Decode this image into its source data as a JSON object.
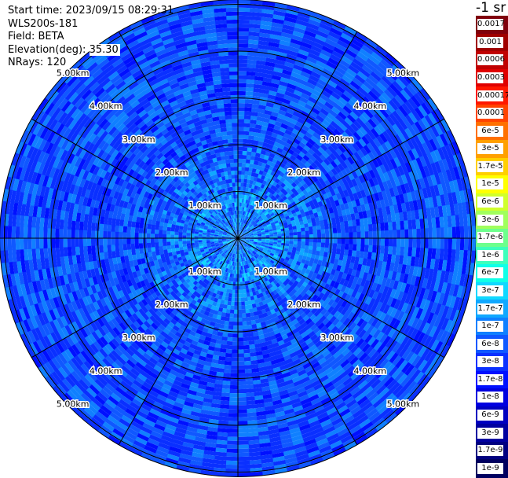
{
  "header": {
    "start_time": "Start time: 2023/09/15 08:29:31",
    "instrument": "WLS200s-181",
    "field": "Field: BETA",
    "elevation_label": "Elevation(deg):",
    "elevation_value": "35.30",
    "nrays": "NRays: 120"
  },
  "colorbar": {
    "title": "-1 sr",
    "labels": [
      "0.0017",
      "0.001",
      "0.0006",
      "0.0003",
      "0.00017",
      "0.0001",
      "6e-5",
      "3e-5",
      "1.7e-5",
      "1e-5",
      "6e-6",
      "3e-6",
      "1.7e-6",
      "1e-6",
      "6e-7",
      "3e-7",
      "1.7e-7",
      "1e-7",
      "6e-8",
      "3e-8",
      "1.7e-8",
      "1e-8",
      "6e-9",
      "3e-9",
      "1.7e-9",
      "1e-9"
    ],
    "colors": [
      "#80000c",
      "#a00000",
      "#c00000",
      "#e00000",
      "#ff1800",
      "#ff4400",
      "#ff7000",
      "#ffa000",
      "#ffcf00",
      "#ffff00",
      "#d0ff2c",
      "#a0ff5c",
      "#6dff8c",
      "#3dffbc",
      "#0fffe8",
      "#10d8ff",
      "#10a8ff",
      "#1080ff",
      "#1058ff",
      "#0a30ff",
      "#0010ff",
      "#0000e0",
      "#0000c0",
      "#0000a0",
      "#000080",
      "#000060"
    ]
  },
  "chart_data": {
    "type": "heatmap",
    "projection": "polar-ppi",
    "variable": "BETA",
    "units": "sr-1",
    "rings_km": [
      1.0,
      2.0,
      3.0,
      4.0,
      5.0
    ],
    "ring_labels": [
      "1.00km",
      "2.00km",
      "3.00km",
      "4.00km",
      "5.00km"
    ],
    "max_range_km": 5.1,
    "n_rays": 120,
    "elevation_deg": 35.3,
    "spoke_angles_deg": [
      0,
      30,
      60,
      90,
      120,
      150,
      180,
      210,
      240,
      270,
      300,
      330
    ],
    "value_range": [
      1e-09,
      0.0017
    ],
    "color_scale": "log",
    "typical_values": {
      "near_center": 2e-07,
      "mid_range": 8e-08,
      "far_range": 6e-08
    }
  }
}
